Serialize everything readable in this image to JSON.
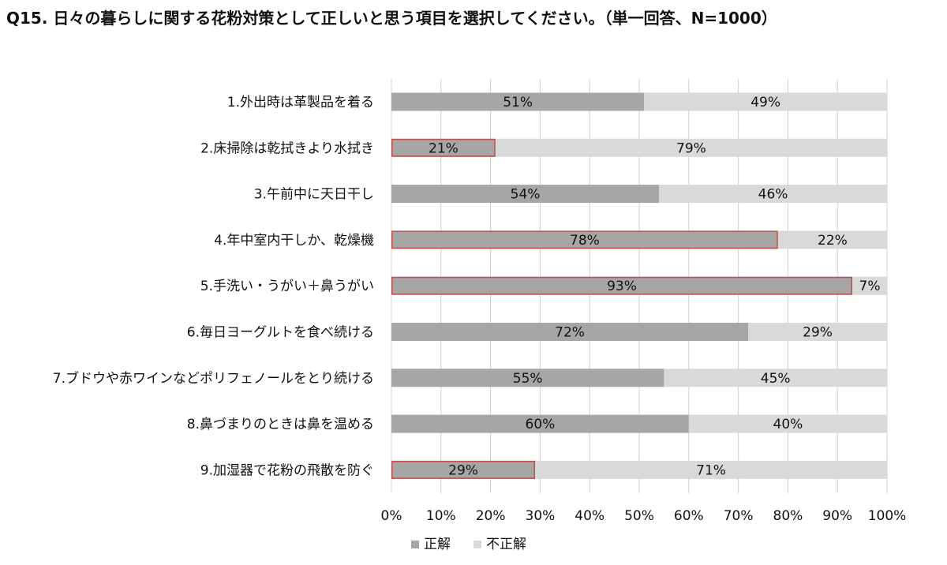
{
  "chart_data": {
    "type": "bar",
    "orientation": "horizontal",
    "stacked": true,
    "percent_stacked": true,
    "title": "Q15. 日々の暮らしに関する花粉対策として正しいと思う項目を選択してください。（単一回答、N=1000）",
    "categories": [
      "1.外出時は革製品を着る",
      "2.床掃除は乾拭きより水拭き",
      "3.午前中に天日干し",
      "4.年中室内干しか、乾燥機",
      "5.手洗い・うがい＋鼻うがい",
      "6.毎日ヨーグルトを食べ続ける",
      "7.ブドウや赤ワインなどポリフェノールをとり続ける",
      "8.鼻づまりのときは鼻を温める",
      "9.加湿器で花粉の飛散を防ぐ"
    ],
    "series": [
      {
        "name": "正解",
        "color": "#a6a6a6",
        "values": [
          51,
          21,
          54,
          78,
          93,
          72,
          55,
          60,
          29
        ],
        "labels": [
          "51%",
          "21%",
          "54%",
          "78%",
          "93%",
          "72%",
          "55%",
          "60%",
          "29%"
        ]
      },
      {
        "name": "不正解",
        "color": "#d9d9d9",
        "values": [
          49,
          79,
          46,
          22,
          7,
          29,
          45,
          40,
          71
        ],
        "labels": [
          "49%",
          "79%",
          "46%",
          "22%",
          "7%",
          "29%",
          "45%",
          "40%",
          "71%"
        ]
      }
    ],
    "highlighted_categories": [
      1,
      3,
      4,
      8
    ],
    "highlight_color": "#c0504d",
    "xlim": [
      0,
      100
    ],
    "x_ticks": [
      "0%",
      "10%",
      "20%",
      "30%",
      "40%",
      "50%",
      "60%",
      "70%",
      "80%",
      "90%",
      "100%"
    ],
    "grid": true,
    "legend_position": "bottom"
  }
}
